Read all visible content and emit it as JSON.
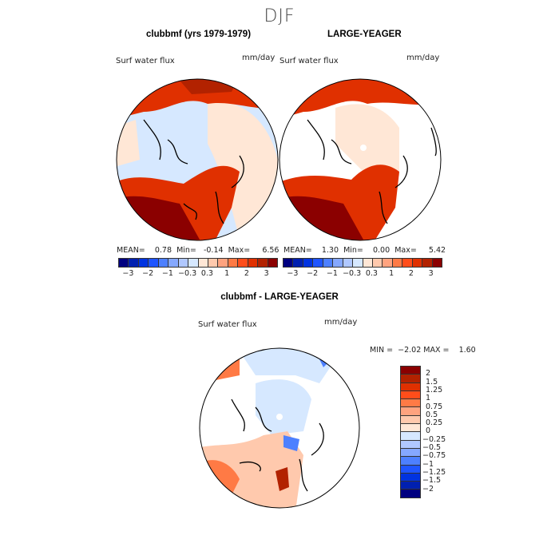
{
  "title": "DJF",
  "variable_label": "Surf water flux",
  "units": "mm/day",
  "panels": [
    {
      "title": "clubbmf (yrs 1979-1979)",
      "mean_label": "MEAN=",
      "mean": "0.78",
      "min_label": "Min=",
      "min": "-0.14",
      "max_label": "Max=",
      "max": "6.56"
    },
    {
      "title": "LARGE-YEAGER",
      "mean_label": "MEAN=",
      "mean": "1.30",
      "min_label": "Min=",
      "min": "0.00",
      "max_label": "Max=",
      "max": "5.42"
    }
  ],
  "colorbar_top": {
    "ticks": [
      "−3",
      "−2",
      "−1",
      "−0.3",
      "0.3",
      "1",
      "2",
      "3"
    ],
    "colors": [
      "#000080",
      "#0020b0",
      "#0033e0",
      "#1f55ff",
      "#4d80ff",
      "#85a8ff",
      "#b0c8ff",
      "#d6e8ff",
      "#ffe7d6",
      "#ffc9ad",
      "#ffa37f",
      "#ff7a45",
      "#ff4d1a",
      "#e03000",
      "#b22200",
      "#8b0000"
    ]
  },
  "diff_panel": {
    "title": "clubbmf - LARGE-YEAGER",
    "min_label": "MIN =",
    "min": "−2.02",
    "max_label": "MAX =",
    "max": "1.60",
    "colorbar_ticks": [
      "2",
      "1.5",
      "1.25",
      "1",
      "0.75",
      "0.5",
      "0.25",
      "0",
      "−0.25",
      "−0.5",
      "−0.75",
      "−1",
      "−1.25",
      "−1.5",
      "−2"
    ],
    "colors": [
      "#8b0000",
      "#b22200",
      "#e03000",
      "#ff4d1a",
      "#ff7a45",
      "#ffa37f",
      "#ffc9ad",
      "#ffe7d6",
      "#d6e8ff",
      "#b0c8ff",
      "#85a8ff",
      "#4d80ff",
      "#1f55ff",
      "#0033e0",
      "#0020b0",
      "#000080"
    ]
  }
}
